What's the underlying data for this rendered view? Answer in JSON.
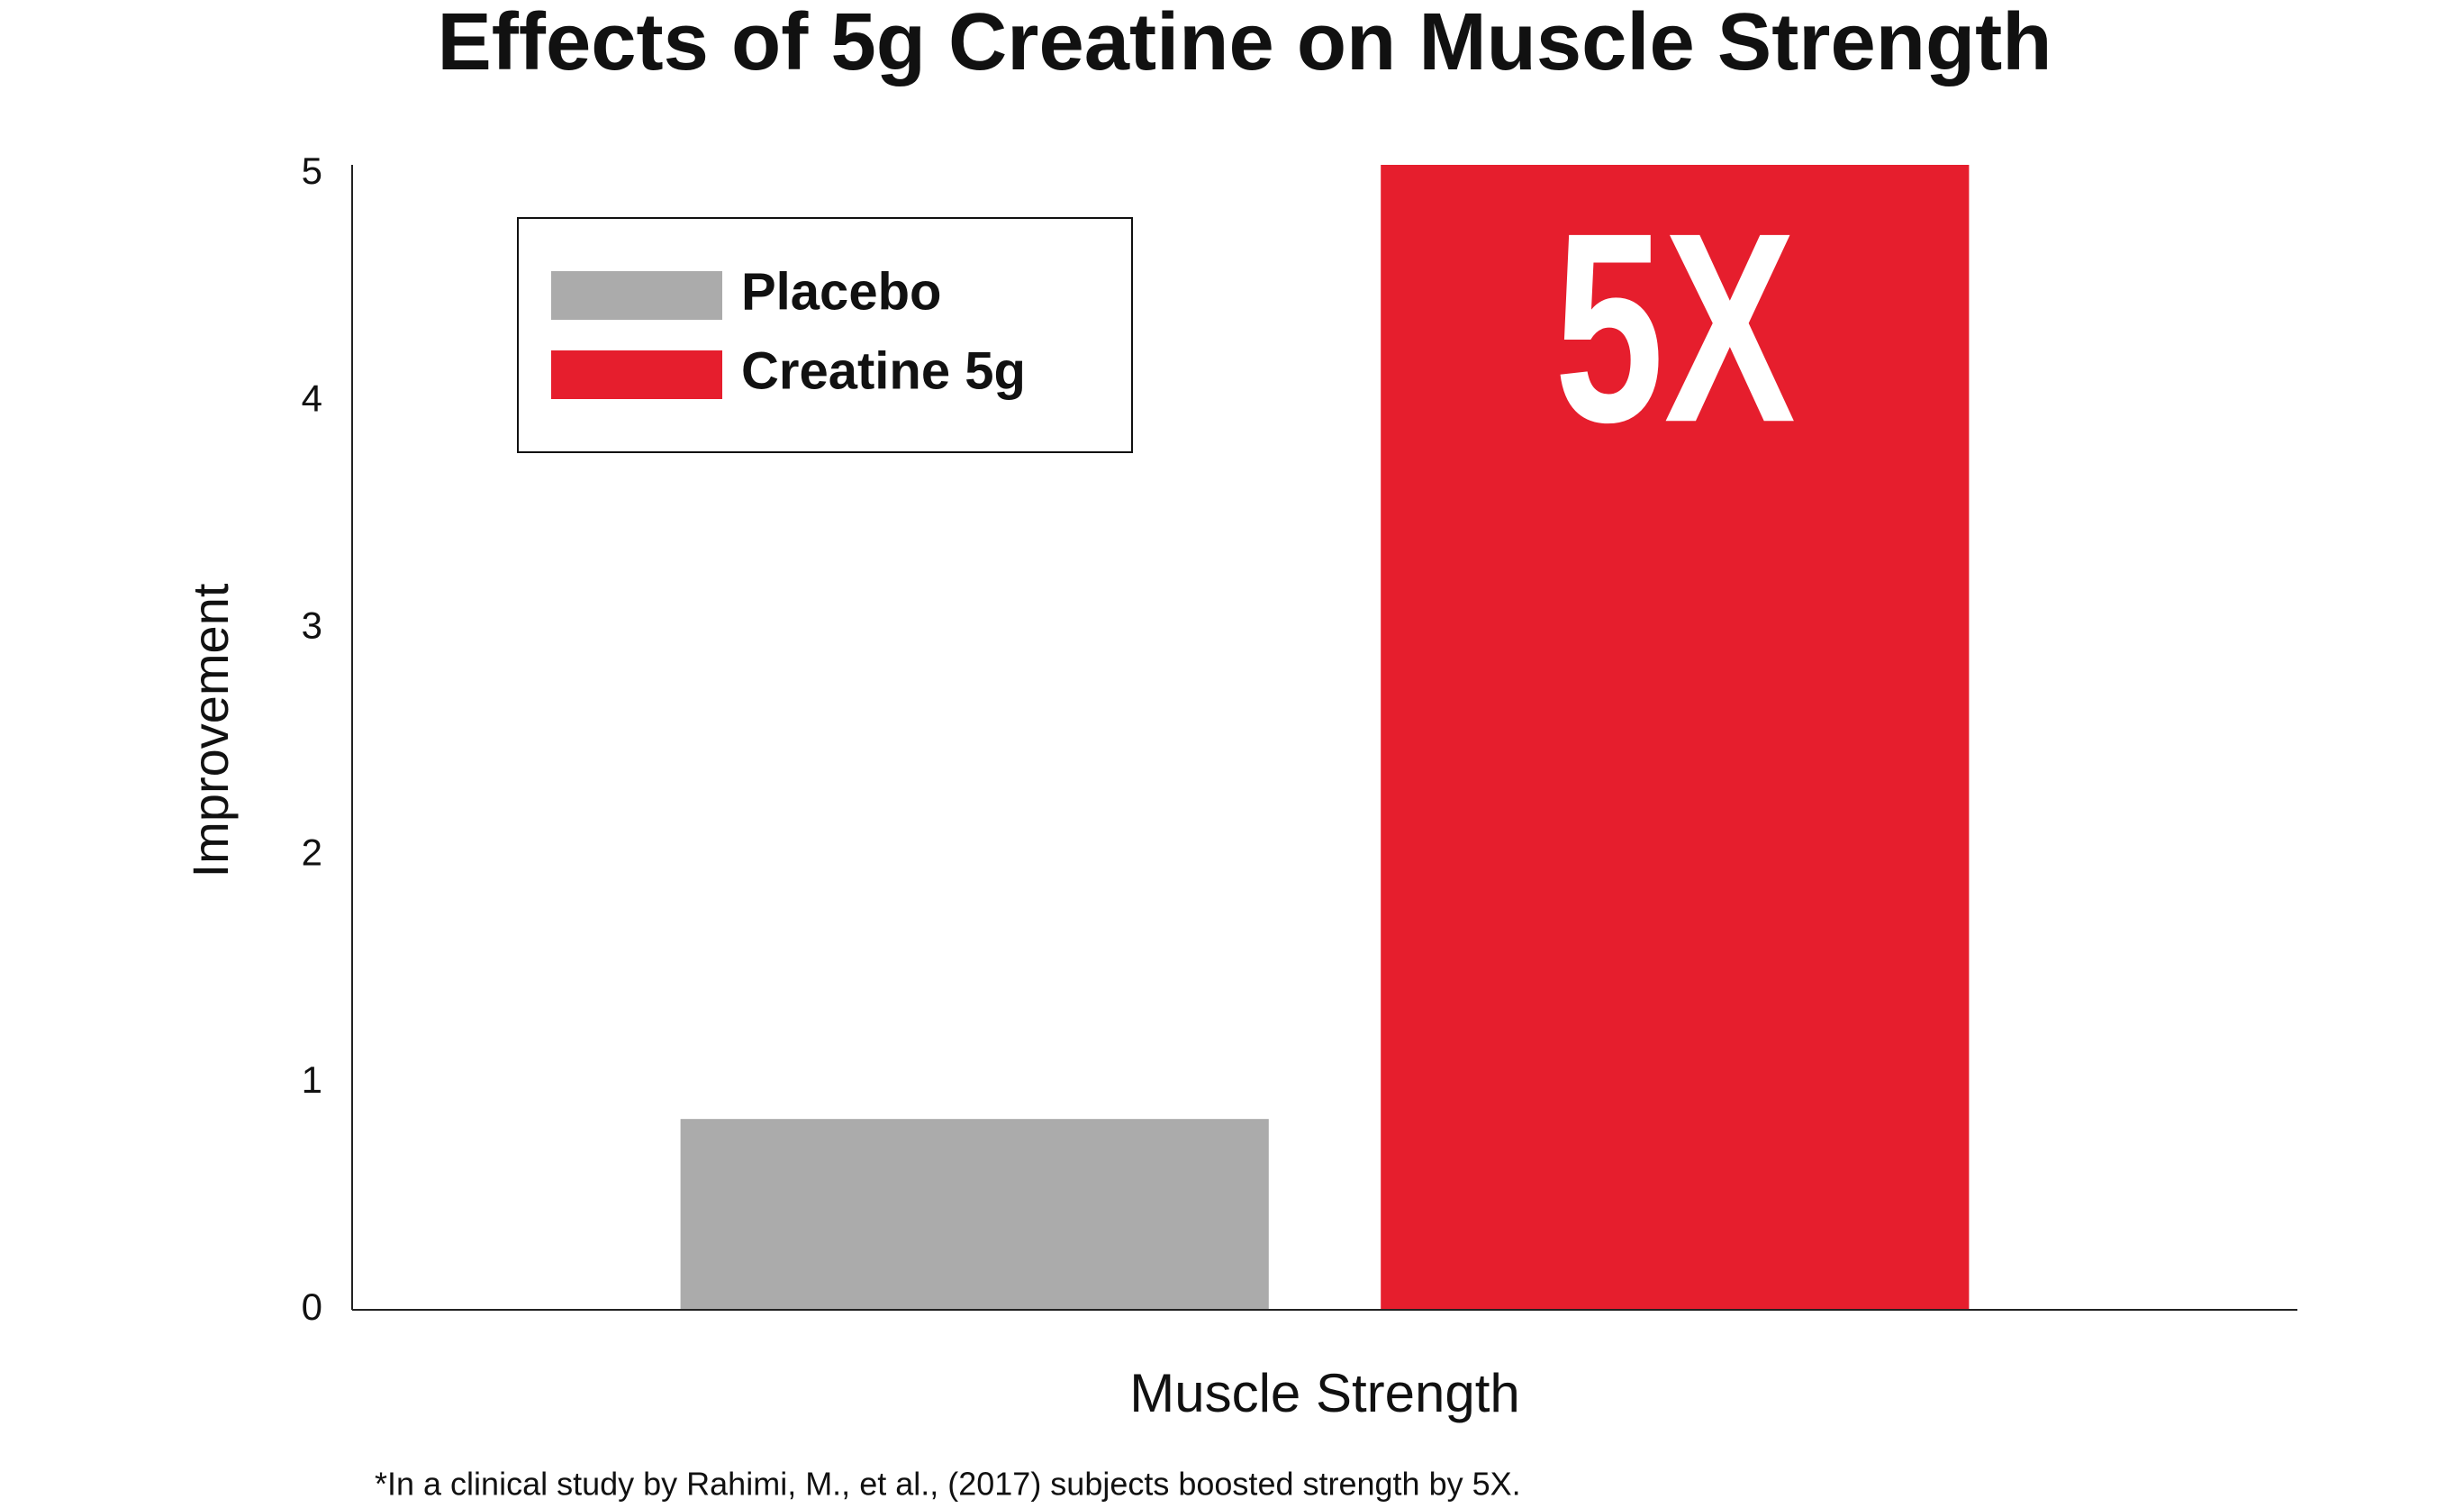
{
  "chart_data": {
    "type": "bar",
    "title": "Effects of 5g Creatine on Muscle Strength",
    "ylabel": "Improvement",
    "categories": [
      "Muscle Strength"
    ],
    "series": [
      {
        "name": "Placebo",
        "color": "#ababab",
        "values": [
          0.84
        ]
      },
      {
        "name": "Creatine 5g",
        "color": "#e61e2d",
        "values": [
          5.04
        ]
      }
    ],
    "annotation": "5X",
    "footnote": "*In a clinical study by Rahimi, M., et al., (2017) subjects boosted strength by 5X.",
    "ylim": [
      0,
      5.04
    ],
    "yticks": [
      0,
      1,
      2,
      3,
      4,
      5
    ],
    "grid": false,
    "legend": "upper left"
  }
}
